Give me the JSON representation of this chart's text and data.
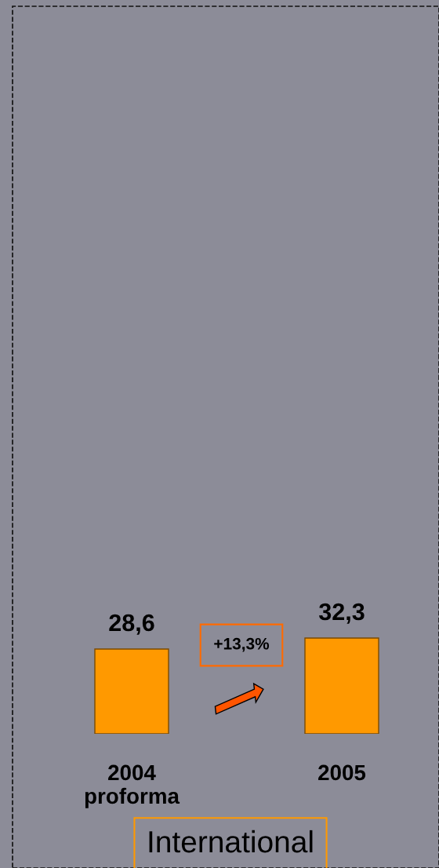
{
  "chart_data": {
    "type": "bar",
    "title": "International",
    "categories": [
      "2004\nproforma",
      "2005"
    ],
    "values": [
      28.6,
      32.3
    ],
    "value_labels": [
      "28,6",
      "32,3"
    ],
    "color": "#ff9900",
    "annotations": [
      "+13,3%"
    ],
    "grid": false,
    "legend": false,
    "tick_labels": "x"
  }
}
